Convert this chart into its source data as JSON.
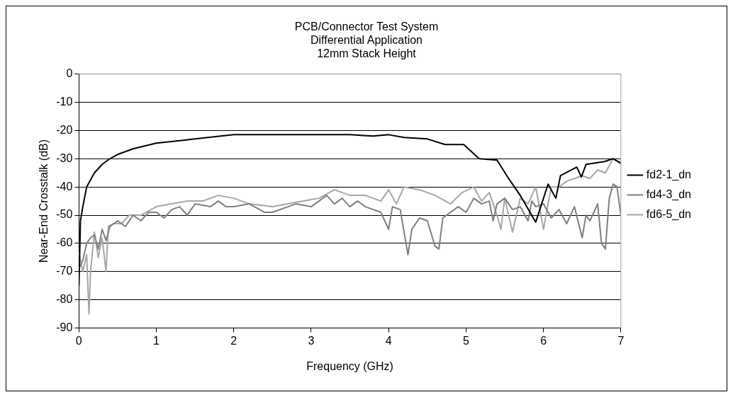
{
  "chart_data": {
    "type": "line",
    "title": "PCB/Connector Test System\nDifferential Application\n12mm Stack Height",
    "xlabel": "Frequency (GHz)",
    "ylabel": "Near-End Crosstalk (dB)",
    "xlim": [
      0,
      7
    ],
    "xticks": [
      0,
      1,
      2,
      3,
      4,
      5,
      6,
      7
    ],
    "ylim": [
      -90,
      0
    ],
    "yticks": [
      -90,
      -80,
      -70,
      -60,
      -50,
      -40,
      -30,
      -20,
      -10,
      0
    ],
    "grid": "y",
    "legend": "right",
    "marker": "none",
    "line_style": "solid",
    "series": [
      {
        "name": "fd2-1_dn",
        "color": "#000000",
        "x": [
          0,
          0.02,
          0.05,
          0.1,
          0.2,
          0.3,
          0.4,
          0.5,
          0.7,
          1.0,
          1.5,
          2.0,
          2.5,
          3.0,
          3.5,
          3.8,
          4.0,
          4.2,
          4.5,
          4.73,
          4.97,
          5.17,
          5.4,
          5.55,
          5.7,
          5.9,
          6.06,
          6.16,
          6.22,
          6.43,
          6.49,
          6.55,
          6.79,
          6.9,
          7.0
        ],
        "values": [
          -75,
          -52,
          -47,
          -40,
          -35,
          -32,
          -30,
          -28.5,
          -26.5,
          -24.5,
          -23,
          -21.5,
          -21.5,
          -21.5,
          -21.5,
          -22,
          -21.5,
          -22.5,
          -23,
          -25,
          -25,
          -30,
          -30.5,
          -37,
          -43,
          -52.5,
          -39,
          -44,
          -36,
          -33,
          -36.5,
          -32,
          -31,
          -30,
          -31.5
        ]
      },
      {
        "name": "fd4-3_dn",
        "color": "#7f7f7f",
        "x": [
          0,
          0.05,
          0.1,
          0.15,
          0.2,
          0.25,
          0.3,
          0.35,
          0.4,
          0.5,
          0.6,
          0.7,
          0.8,
          0.9,
          1.0,
          1.1,
          1.2,
          1.3,
          1.4,
          1.5,
          1.7,
          1.8,
          1.9,
          2.0,
          2.2,
          2.4,
          2.5,
          2.7,
          2.8,
          3.0,
          3.2,
          3.3,
          3.4,
          3.5,
          3.6,
          3.7,
          3.9,
          4.0,
          4.05,
          4.15,
          4.25,
          4.3,
          4.4,
          4.5,
          4.6,
          4.65,
          4.7,
          4.8,
          4.9,
          5.0,
          5.1,
          5.2,
          5.3,
          5.35,
          5.4,
          5.5,
          5.6,
          5.7,
          5.8,
          5.85,
          5.9,
          6.0,
          6.1,
          6.2,
          6.3,
          6.4,
          6.5,
          6.55,
          6.6,
          6.7,
          6.75,
          6.8,
          6.85,
          6.9,
          6.95,
          7.0
        ],
        "values": [
          -69,
          -66,
          -60,
          -58,
          -57,
          -62,
          -55,
          -59,
          -54,
          -52,
          -54,
          -50,
          -52,
          -49,
          -49,
          -51,
          -48,
          -47,
          -50,
          -46,
          -47,
          -45,
          -47,
          -47,
          -46,
          -49,
          -49,
          -47,
          -46,
          -47,
          -43,
          -46,
          -44,
          -47,
          -45,
          -47,
          -49,
          -55,
          -47,
          -48,
          -64,
          -55,
          -51,
          -52,
          -61,
          -62,
          -51,
          -49,
          -47,
          -49,
          -44,
          -46,
          -45,
          -52,
          -46,
          -44,
          -48,
          -47,
          -52,
          -45,
          -47,
          -46,
          -51,
          -48,
          -53,
          -47,
          -58,
          -50,
          -52,
          -46,
          -60,
          -62,
          -44,
          -39,
          -40,
          -50
        ]
      },
      {
        "name": "fd6-5_dn",
        "color": "#a6a6a6",
        "x": [
          0,
          0.05,
          0.1,
          0.13,
          0.15,
          0.2,
          0.25,
          0.3,
          0.35,
          0.38,
          0.45,
          0.55,
          0.65,
          0.8,
          1.0,
          1.2,
          1.4,
          1.6,
          1.8,
          2.0,
          2.2,
          2.5,
          2.7,
          2.9,
          3.1,
          3.3,
          3.5,
          3.7,
          3.9,
          4.0,
          4.1,
          4.2,
          4.4,
          4.6,
          4.8,
          4.95,
          5.1,
          5.2,
          5.3,
          5.4,
          5.45,
          5.5,
          5.6,
          5.7,
          5.8,
          5.9,
          6.0,
          6.1,
          6.2,
          6.3,
          6.4,
          6.5,
          6.6,
          6.7,
          6.8,
          6.9,
          7.0
        ],
        "values": [
          -63,
          -70,
          -64,
          -85,
          -70,
          -56,
          -65,
          -58,
          -70,
          -54,
          -53,
          -53,
          -50,
          -50,
          -47,
          -46,
          -45,
          -45,
          -43,
          -44,
          -46,
          -47,
          -46,
          -45,
          -44,
          -41,
          -43,
          -43,
          -45,
          -41,
          -46,
          -40,
          -41,
          -43,
          -46,
          -42,
          -40,
          -45,
          -42,
          -50,
          -55,
          -44,
          -56,
          -44,
          -46,
          -40,
          -55,
          -40,
          -40,
          -38,
          -37,
          -36,
          -37,
          -34,
          -35,
          -30,
          -32
        ]
      }
    ]
  }
}
